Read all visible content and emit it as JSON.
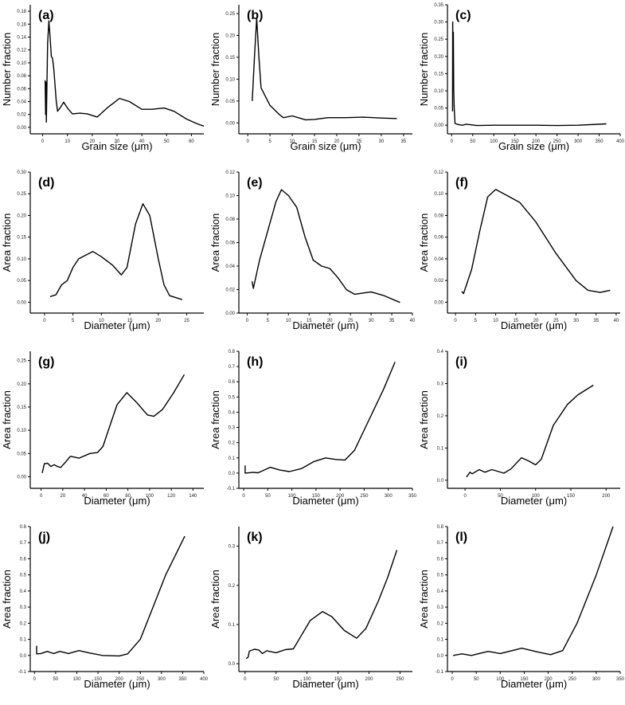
{
  "chart_data": [
    {
      "panel": "(a)",
      "type": "line",
      "xlabel": "Grain size (μm)",
      "ylabel": "Number fraction",
      "xlim": [
        -5,
        65
      ],
      "ylim": [
        -0.01,
        0.19
      ],
      "xticks": [
        "0",
        "10",
        "20",
        "30",
        "40",
        "50",
        "60"
      ],
      "yticks": [
        "0.00",
        "0.02",
        "0.04",
        "0.06",
        "0.08",
        "0.10",
        "0.12",
        "0.14",
        "0.16",
        "0.18"
      ],
      "points": [
        [
          1,
          0.073
        ],
        [
          1.2,
          0.02
        ],
        [
          1.4,
          0.07
        ],
        [
          1.5,
          0.008
        ],
        [
          2,
          0.13
        ],
        [
          2.5,
          0.165
        ],
        [
          3,
          0.14
        ],
        [
          3.5,
          0.11
        ],
        [
          4,
          0.107
        ],
        [
          4.5,
          0.09
        ],
        [
          5.5,
          0.04
        ],
        [
          6,
          0.025
        ],
        [
          7,
          0.03
        ],
        [
          8.5,
          0.039
        ],
        [
          10,
          0.03
        ],
        [
          12,
          0.021
        ],
        [
          15,
          0.022
        ],
        [
          18,
          0.021
        ],
        [
          22,
          0.016
        ],
        [
          26,
          0.03
        ],
        [
          31,
          0.045
        ],
        [
          35,
          0.04
        ],
        [
          40,
          0.028
        ],
        [
          44,
          0.028
        ],
        [
          49,
          0.03
        ],
        [
          53,
          0.025
        ],
        [
          58,
          0.013
        ],
        [
          62,
          0.006
        ],
        [
          65,
          0.002
        ]
      ]
    },
    {
      "panel": "(b)",
      "type": "line",
      "xlabel": "Grain size (μm)",
      "ylabel": "Number fraction",
      "xlim": [
        -2,
        37
      ],
      "ylim": [
        -0.025,
        0.27
      ],
      "xticks": [
        "0",
        "5",
        "10",
        "15",
        "20",
        "25",
        "30",
        "35"
      ],
      "yticks": [
        "0.00",
        "0.05",
        "0.10",
        "0.15",
        "0.20",
        "0.25"
      ],
      "points": [
        [
          1,
          0.05
        ],
        [
          1.5,
          0.15
        ],
        [
          2,
          0.24
        ],
        [
          2.5,
          0.15
        ],
        [
          3,
          0.08
        ],
        [
          4,
          0.06
        ],
        [
          5,
          0.04
        ],
        [
          7,
          0.02
        ],
        [
          8,
          0.012
        ],
        [
          10,
          0.016
        ],
        [
          12,
          0.01
        ],
        [
          13,
          0.007
        ],
        [
          15,
          0.008
        ],
        [
          18,
          0.012
        ],
        [
          22,
          0.012
        ],
        [
          26,
          0.013
        ],
        [
          30,
          0.011
        ],
        [
          33.5,
          0.01
        ]
      ]
    },
    {
      "panel": "(c)",
      "type": "line",
      "xlabel": "Grain size (μm)",
      "ylabel": "Number fraction",
      "xlim": [
        -10,
        400
      ],
      "ylim": [
        -0.025,
        0.35
      ],
      "xticks": [
        "0",
        "50",
        "100",
        "150",
        "200",
        "250",
        "300",
        "350",
        "400"
      ],
      "yticks": [
        "0.00",
        "0.05",
        "0.10",
        "0.15",
        "0.20",
        "0.25",
        "0.30",
        "0.35"
      ],
      "points": [
        [
          2,
          0.04
        ],
        [
          2.5,
          0.3
        ],
        [
          3,
          0.2
        ],
        [
          4,
          0.27
        ],
        [
          5,
          0.1
        ],
        [
          6,
          0.05
        ],
        [
          8,
          0.005
        ],
        [
          15,
          0.002
        ],
        [
          25,
          0
        ],
        [
          35,
          0.003
        ],
        [
          60,
          -0.001
        ],
        [
          100,
          0
        ],
        [
          200,
          0
        ],
        [
          250,
          -0.001
        ],
        [
          300,
          0
        ],
        [
          367,
          0.004
        ]
      ]
    },
    {
      "panel": "(d)",
      "type": "line",
      "xlabel": "Diameter (μm)",
      "ylabel": "Area fraction",
      "xlim": [
        -2.5,
        28
      ],
      "ylim": [
        -0.025,
        0.3
      ],
      "xticks": [
        "0",
        "5",
        "10",
        "15",
        "20",
        "25"
      ],
      "yticks": [
        "0.00",
        "0.05",
        "0.10",
        "0.15",
        "0.20",
        "0.25",
        "0.30"
      ],
      "points": [
        [
          1,
          0.013
        ],
        [
          2,
          0.017
        ],
        [
          3,
          0.04
        ],
        [
          4,
          0.05
        ],
        [
          5,
          0.08
        ],
        [
          6,
          0.1
        ],
        [
          8.5,
          0.117
        ],
        [
          10,
          0.105
        ],
        [
          12,
          0.085
        ],
        [
          13.5,
          0.063
        ],
        [
          14.5,
          0.08
        ],
        [
          16,
          0.18
        ],
        [
          17.3,
          0.227
        ],
        [
          18.5,
          0.2
        ],
        [
          20,
          0.1
        ],
        [
          21,
          0.04
        ],
        [
          22,
          0.015
        ],
        [
          24.2,
          0.006
        ]
      ]
    },
    {
      "panel": "(e)",
      "type": "line",
      "xlabel": "Diameter (μm)",
      "ylabel": "Area fraction",
      "xlim": [
        -2,
        40
      ],
      "ylim": [
        0,
        0.12
      ],
      "xticks": [
        "0",
        "5",
        "10",
        "15",
        "20",
        "25",
        "30",
        "35",
        "40"
      ],
      "yticks": [
        "0.00",
        "0.02",
        "0.04",
        "0.06",
        "0.08",
        "0.10",
        "0.12"
      ],
      "points": [
        [
          1.2,
          0.027
        ],
        [
          1.5,
          0.021
        ],
        [
          3,
          0.045
        ],
        [
          5,
          0.07
        ],
        [
          7,
          0.095
        ],
        [
          8.3,
          0.105
        ],
        [
          10,
          0.1
        ],
        [
          12,
          0.09
        ],
        [
          14,
          0.065
        ],
        [
          16,
          0.045
        ],
        [
          18,
          0.04
        ],
        [
          20,
          0.038
        ],
        [
          22,
          0.03
        ],
        [
          24,
          0.02
        ],
        [
          26,
          0.016
        ],
        [
          30,
          0.018
        ],
        [
          33,
          0.015
        ],
        [
          37,
          0.009
        ]
      ]
    },
    {
      "panel": "(f)",
      "type": "line",
      "xlabel": "Diameter (μm)",
      "ylabel": "Area fraction",
      "xlim": [
        -2,
        41
      ],
      "ylim": [
        -0.01,
        0.12
      ],
      "xticks": [
        "0",
        "5",
        "10",
        "15",
        "20",
        "25",
        "30",
        "35",
        "40"
      ],
      "yticks": [
        "0.00",
        "0.02",
        "0.04",
        "0.06",
        "0.08",
        "0.10",
        "0.12"
      ],
      "points": [
        [
          1.5,
          0.01
        ],
        [
          2,
          0.008
        ],
        [
          4,
          0.03
        ],
        [
          6,
          0.065
        ],
        [
          8,
          0.097
        ],
        [
          10,
          0.104
        ],
        [
          12,
          0.1
        ],
        [
          16,
          0.092
        ],
        [
          20,
          0.074
        ],
        [
          25,
          0.045
        ],
        [
          30,
          0.02
        ],
        [
          33,
          0.011
        ],
        [
          36,
          0.009
        ],
        [
          38.5,
          0.011
        ]
      ]
    },
    {
      "panel": "(g)",
      "type": "line",
      "xlabel": "Diameter (μm)",
      "ylabel": "Area fraction",
      "xlim": [
        -10,
        150
      ],
      "ylim": [
        -0.025,
        0.27
      ],
      "xticks": [
        "0",
        "20",
        "40",
        "60",
        "80",
        "100",
        "120",
        "140"
      ],
      "yticks": [
        "0.00",
        "0.05",
        "0.10",
        "0.15",
        "0.20",
        "0.25"
      ],
      "points": [
        [
          1,
          0.008
        ],
        [
          3,
          0.028
        ],
        [
          6,
          0.029
        ],
        [
          9,
          0.022
        ],
        [
          12,
          0.026
        ],
        [
          15,
          0.022
        ],
        [
          18,
          0.02
        ],
        [
          22,
          0.03
        ],
        [
          27,
          0.044
        ],
        [
          35,
          0.04
        ],
        [
          45,
          0.05
        ],
        [
          52,
          0.052
        ],
        [
          57,
          0.065
        ],
        [
          62,
          0.1
        ],
        [
          70,
          0.155
        ],
        [
          79,
          0.181
        ],
        [
          88,
          0.16
        ],
        [
          98,
          0.133
        ],
        [
          104,
          0.13
        ],
        [
          112,
          0.145
        ],
        [
          122,
          0.18
        ],
        [
          132,
          0.22
        ]
      ]
    },
    {
      "panel": "(h)",
      "type": "line",
      "xlabel": "Diameter (μm)",
      "ylabel": "Area fraction",
      "xlim": [
        -10,
        350
      ],
      "ylim": [
        -0.1,
        0.8
      ],
      "xticks": [
        "0",
        "50",
        "100",
        "150",
        "200",
        "250",
        "300",
        "350"
      ],
      "yticks": [
        "-0.1",
        "0.0",
        "0.1",
        "0.2",
        "0.3",
        "0.4",
        "0.5",
        "0.6",
        "0.7",
        "0.8"
      ],
      "points": [
        [
          3,
          0.05
        ],
        [
          3,
          0
        ],
        [
          20,
          0.005
        ],
        [
          30,
          0.002
        ],
        [
          55,
          0.038
        ],
        [
          75,
          0.02
        ],
        [
          95,
          0.01
        ],
        [
          120,
          0.03
        ],
        [
          145,
          0.075
        ],
        [
          170,
          0.1
        ],
        [
          190,
          0.09
        ],
        [
          210,
          0.085
        ],
        [
          230,
          0.15
        ],
        [
          260,
          0.35
        ],
        [
          290,
          0.55
        ],
        [
          314,
          0.73
        ]
      ]
    },
    {
      "panel": "(i)",
      "type": "line",
      "xlabel": "Diameter (μm)",
      "ylabel": "Area fraction",
      "xlim": [
        -25,
        220
      ],
      "ylim": [
        -0.025,
        0.4
      ],
      "xticks": [
        "0",
        "50",
        "100",
        "150",
        "200"
      ],
      "yticks": [
        "0.0",
        "0.1",
        "0.2",
        "0.3",
        "0.4"
      ],
      "points": [
        [
          2,
          0.01
        ],
        [
          7,
          0.025
        ],
        [
          10,
          0.02
        ],
        [
          20,
          0.033
        ],
        [
          28,
          0.025
        ],
        [
          38,
          0.033
        ],
        [
          55,
          0.022
        ],
        [
          65,
          0.035
        ],
        [
          80,
          0.07
        ],
        [
          90,
          0.06
        ],
        [
          100,
          0.048
        ],
        [
          108,
          0.065
        ],
        [
          125,
          0.17
        ],
        [
          145,
          0.235
        ],
        [
          160,
          0.265
        ],
        [
          182,
          0.295
        ]
      ]
    },
    {
      "panel": "(j)",
      "type": "line",
      "xlabel": "Diameter (μm)",
      "ylabel": "Area fraction",
      "xlim": [
        -10,
        400
      ],
      "ylim": [
        -0.1,
        0.8
      ],
      "xticks": [
        "0",
        "50",
        "100",
        "150",
        "200",
        "250",
        "300",
        "350",
        "400"
      ],
      "yticks": [
        "-0.1",
        "0.0",
        "0.1",
        "0.2",
        "0.3",
        "0.4",
        "0.5",
        "0.6",
        "0.7",
        "0.8"
      ],
      "points": [
        [
          5,
          0.06
        ],
        [
          5,
          0.01
        ],
        [
          15,
          0.012
        ],
        [
          30,
          0.025
        ],
        [
          45,
          0.012
        ],
        [
          60,
          0.025
        ],
        [
          80,
          0.012
        ],
        [
          105,
          0.03
        ],
        [
          130,
          0.015
        ],
        [
          160,
          0
        ],
        [
          200,
          -0.003
        ],
        [
          220,
          0.01
        ],
        [
          250,
          0.1
        ],
        [
          280,
          0.3
        ],
        [
          310,
          0.5
        ],
        [
          355,
          0.74
        ]
      ]
    },
    {
      "panel": "(k)",
      "type": "line",
      "xlabel": "Diameter (μm)",
      "ylabel": "Area fraction",
      "xlim": [
        -10,
        270
      ],
      "ylim": [
        -0.02,
        0.35
      ],
      "xticks": [
        "0",
        "50",
        "100",
        "150",
        "200",
        "250"
      ],
      "yticks": [
        "0.0",
        "0.1",
        "0.2",
        "0.3"
      ],
      "points": [
        [
          2,
          0.013
        ],
        [
          5,
          0.017
        ],
        [
          7,
          0.032
        ],
        [
          15,
          0.037
        ],
        [
          22,
          0.035
        ],
        [
          28,
          0.026
        ],
        [
          35,
          0.033
        ],
        [
          50,
          0.028
        ],
        [
          65,
          0.036
        ],
        [
          78,
          0.038
        ],
        [
          90,
          0.07
        ],
        [
          105,
          0.11
        ],
        [
          125,
          0.133
        ],
        [
          140,
          0.12
        ],
        [
          160,
          0.085
        ],
        [
          180,
          0.065
        ],
        [
          195,
          0.09
        ],
        [
          215,
          0.16
        ],
        [
          230,
          0.22
        ],
        [
          245,
          0.29
        ]
      ]
    },
    {
      "panel": "(l)",
      "type": "line",
      "xlabel": "Diameter (μm)",
      "ylabel": "Area fraction",
      "xlim": [
        -10,
        350
      ],
      "ylim": [
        -0.1,
        0.8
      ],
      "xticks": [
        "0",
        "50",
        "100",
        "150",
        "200",
        "250",
        "300",
        "350"
      ],
      "yticks": [
        "-0.1",
        "0.0",
        "0.1",
        "0.2",
        "0.3",
        "0.4",
        "0.5",
        "0.6",
        "0.7",
        "0.8"
      ],
      "points": [
        [
          2,
          0
        ],
        [
          20,
          0.01
        ],
        [
          40,
          0
        ],
        [
          75,
          0.025
        ],
        [
          100,
          0.012
        ],
        [
          145,
          0.045
        ],
        [
          180,
          0.02
        ],
        [
          205,
          0.005
        ],
        [
          230,
          0.03
        ],
        [
          260,
          0.2
        ],
        [
          300,
          0.5
        ],
        [
          335,
          0.8
        ]
      ]
    }
  ]
}
